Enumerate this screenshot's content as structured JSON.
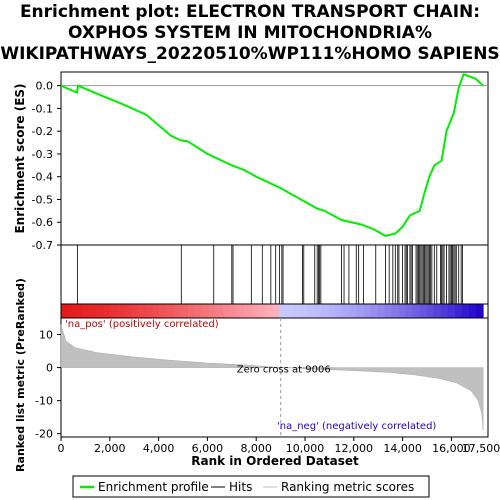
{
  "chart_data": {
    "type": "line",
    "title_lines": [
      "Enrichment plot: ELECTRON TRANSPORT CHAIN:",
      "OXPHOS SYSTEM IN MITOCHONDRIA%",
      "WIKIPATHWAYS_20220510%WP111%HOMO SAPIENS"
    ],
    "es_panel": {
      "ylabel": "Enrichment score (ES)",
      "ylim": [
        -0.7,
        0.06
      ],
      "yticks": [
        0.0,
        -0.1,
        -0.2,
        -0.3,
        -0.4,
        -0.5,
        -0.6,
        -0.7
      ],
      "ytick_labels": [
        "0.0",
        "-0.1",
        "-0.2",
        "-0.3",
        "-0.4",
        "-0.5",
        "-0.6",
        "-0.7"
      ],
      "color": "#00ee00",
      "series": [
        {
          "name": "Enrichment profile",
          "points": [
            [
              0,
              0.0
            ],
            [
              650,
              -0.03
            ],
            [
              700,
              0.0
            ],
            [
              1500,
              -0.036
            ],
            [
              2500,
              -0.08
            ],
            [
              3500,
              -0.128
            ],
            [
              4500,
              -0.22
            ],
            [
              4900,
              -0.24
            ],
            [
              5200,
              -0.245
            ],
            [
              6000,
              -0.3
            ],
            [
              7000,
              -0.35
            ],
            [
              7500,
              -0.37
            ],
            [
              8000,
              -0.4
            ],
            [
              9000,
              -0.45
            ],
            [
              10000,
              -0.51
            ],
            [
              10500,
              -0.54
            ],
            [
              10800,
              -0.55
            ],
            [
              11500,
              -0.59
            ],
            [
              12300,
              -0.61
            ],
            [
              12800,
              -0.63
            ],
            [
              13300,
              -0.66
            ],
            [
              13700,
              -0.65
            ],
            [
              14000,
              -0.62
            ],
            [
              14300,
              -0.57
            ],
            [
              14700,
              -0.55
            ],
            [
              14900,
              -0.47
            ],
            [
              15100,
              -0.4
            ],
            [
              15300,
              -0.35
            ],
            [
              15600,
              -0.33
            ],
            [
              15800,
              -0.2
            ],
            [
              16100,
              -0.12
            ],
            [
              16300,
              -0.01
            ],
            [
              16500,
              0.05
            ],
            [
              17000,
              0.03
            ],
            [
              17300,
              0.0
            ]
          ]
        }
      ]
    },
    "hits": [
      680,
      4930,
      6260,
      7000,
      7050,
      7800,
      8250,
      8600,
      8800,
      8950,
      9050,
      9100,
      9900,
      9950,
      10400,
      10500,
      10550,
      10600,
      10650,
      11500,
      11600,
      11800,
      12100,
      12200,
      12400,
      12900,
      13300,
      13450,
      13600,
      13700,
      13800,
      13850,
      14000,
      14100,
      14150,
      14200,
      14300,
      14350,
      14400,
      14550,
      14600,
      14650,
      14700,
      14750,
      14800,
      14850,
      14900,
      14950,
      15000,
      15050,
      15100,
      15150,
      15200,
      15300,
      15400,
      15550,
      15600,
      15650,
      15700,
      15800,
      15900,
      15950,
      16000,
      16050,
      16100,
      16150,
      16200,
      16300,
      16400,
      16450
    ],
    "rank_panel": {
      "ylabel": "Ranked list metric (PreRanked)",
      "xlabel": "Rank in Ordered Dataset",
      "xlim": [
        0,
        17500
      ],
      "ylim": [
        -21,
        15
      ],
      "yticks": [
        10,
        0,
        -10,
        -20
      ],
      "ytick_labels": [
        "10",
        "0",
        "-10",
        "-20"
      ],
      "xticks": [
        0,
        2000,
        4000,
        6000,
        8000,
        10000,
        12000,
        14000,
        16000
      ],
      "xtick_labels": [
        "0",
        "2,000",
        "4,000",
        "6,000",
        "8,000",
        "10,000",
        "12,000",
        "14,000",
        "16,000"
      ],
      "extra_xtick_labels": [
        "17,500"
      ],
      "metric_curve": [
        [
          0,
          13
        ],
        [
          200,
          8
        ],
        [
          600,
          6
        ],
        [
          1500,
          4.5
        ],
        [
          3000,
          3.2
        ],
        [
          4500,
          2.2
        ],
        [
          6000,
          1.4
        ],
        [
          7500,
          0.8
        ],
        [
          9006,
          0.0
        ],
        [
          10500,
          -0.5
        ],
        [
          12000,
          -0.9
        ],
        [
          13500,
          -1.5
        ],
        [
          14500,
          -2.2
        ],
        [
          15500,
          -3.3
        ],
        [
          16200,
          -4.6
        ],
        [
          16800,
          -7.0
        ],
        [
          17100,
          -10.0
        ],
        [
          17250,
          -14.0
        ],
        [
          17300,
          -19.0
        ]
      ],
      "zero_cross_label": "Zero cross at 9006",
      "pos_label": "'na_pos' (positively correlated)",
      "neg_label": "'na_neg' (negatively correlated)",
      "zero_cross_rank": 9006
    },
    "legend": {
      "entries": [
        "Enrichment profile",
        "Hits",
        "Ranking metric scores"
      ],
      "colors": [
        "#00ee00",
        "#000000",
        "#c0c0c0"
      ],
      "placement": "bottom"
    },
    "heatbar_colors": {
      "pos_dark": "#e41a1c",
      "pos_light": "#ffb6c1",
      "neg_light": "#c8c8ff",
      "neg_dark": "#1e00c8"
    }
  }
}
